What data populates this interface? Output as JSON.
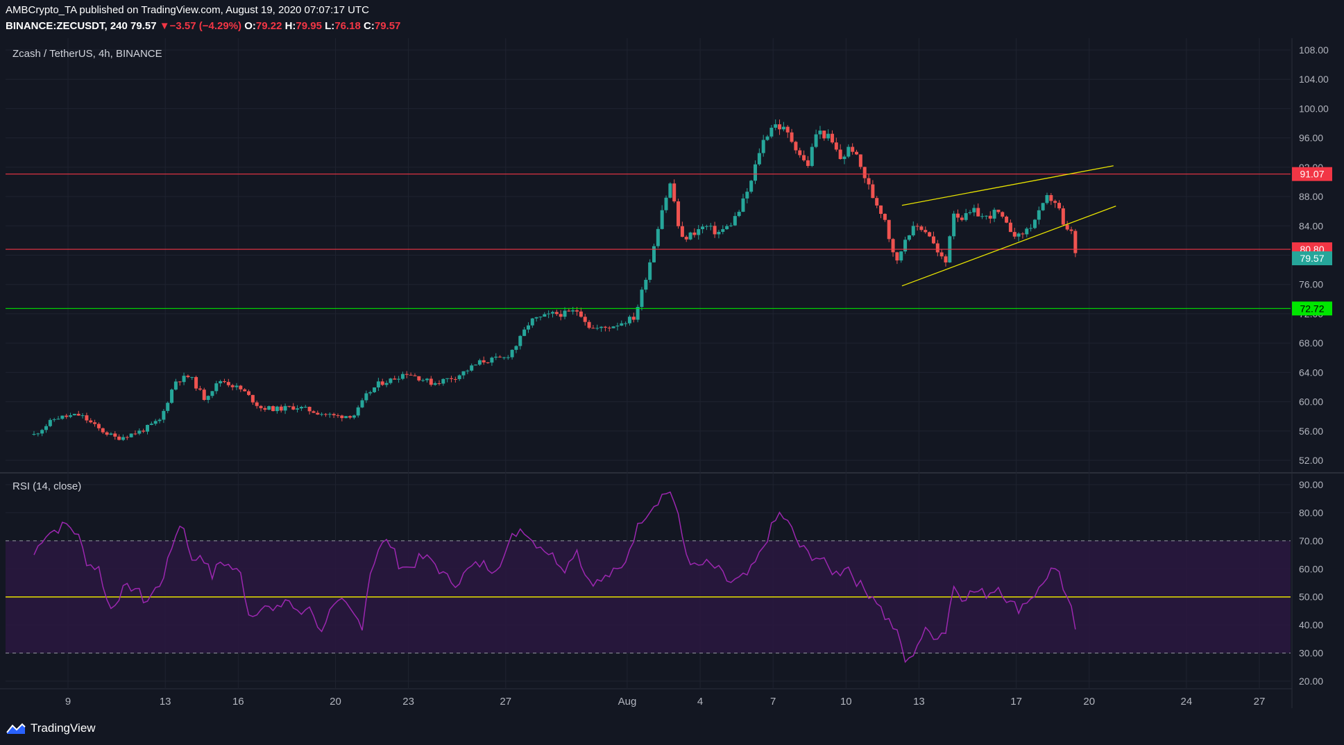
{
  "header": {
    "published": "AMBCrypto_TA published on TradingView.com, August 19, 2020 07:07:17 UTC",
    "symbol": "BINANCE:ZECUSDT, 240",
    "last": "79.57",
    "change_arrow": "▼",
    "change": "−3.57 (−4.29%)",
    "o_label": "O:",
    "o": "79.22",
    "h_label": "H:",
    "h": "79.95",
    "l_label": "L:",
    "l": "76.18",
    "c_label": "C:",
    "c": "79.57"
  },
  "chart_title": "Zcash / TetherUS, 4h, BINANCE",
  "rsi_title": "RSI (14, close)",
  "brand": "TradingView",
  "colors": {
    "background": "#131722",
    "up": "#26a69a",
    "down": "#ef5350",
    "resistance": "#f23645",
    "support": "#00e600",
    "channel": "#e8e300",
    "rsi_line": "#9c27b0",
    "rsi_band": "#2a1840"
  },
  "chart_data": [
    {
      "type": "candlestick",
      "title": "Zcash / TetherUS, 4h, BINANCE",
      "x_ticks": [
        "9",
        "13",
        "16",
        "20",
        "23",
        "27",
        "Aug",
        "4",
        "7",
        "10",
        "13",
        "17",
        "20",
        "24",
        "27"
      ],
      "x_tick_days": [
        9,
        13,
        16,
        20,
        23,
        27,
        32,
        35,
        38,
        41,
        44,
        48,
        51,
        55,
        58
      ],
      "x_unit": "day (July = 1–31, August = 32+)",
      "ylim": [
        50,
        108
      ],
      "y_ticks": [
        "108.00",
        "104.00",
        "100.00",
        "96.00",
        "92.00",
        "88.00",
        "84.00",
        "80.00",
        "76.00",
        "72.00",
        "68.00",
        "64.00",
        "60.00",
        "56.00",
        "52.00"
      ],
      "anchor_closes": [
        [
          7.6,
          55.5
        ],
        [
          8.5,
          57.8
        ],
        [
          9.5,
          58.2
        ],
        [
          10.3,
          56.2
        ],
        [
          11.0,
          55.0
        ],
        [
          12.0,
          56.0
        ],
        [
          12.8,
          57.5
        ],
        [
          13.4,
          62.8
        ],
        [
          14.0,
          63.5
        ],
        [
          14.6,
          60.5
        ],
        [
          15.3,
          63.0
        ],
        [
          16.2,
          61.5
        ],
        [
          16.9,
          59.2
        ],
        [
          17.6,
          59.0
        ],
        [
          18.4,
          59.3
        ],
        [
          19.3,
          58.5
        ],
        [
          20.0,
          58.0
        ],
        [
          20.8,
          58.2
        ],
        [
          21.3,
          61.0
        ],
        [
          21.8,
          62.5
        ],
        [
          22.3,
          63.0
        ],
        [
          22.9,
          64.0
        ],
        [
          24.0,
          62.5
        ],
        [
          25.0,
          63.5
        ],
        [
          26.0,
          65.5
        ],
        [
          27.0,
          66.0
        ],
        [
          27.5,
          68.0
        ],
        [
          28.0,
          71.0
        ],
        [
          29.0,
          72.0
        ],
        [
          29.5,
          72.0
        ],
        [
          30.0,
          72.5
        ],
        [
          30.5,
          70.0
        ],
        [
          31.0,
          70.0
        ],
        [
          31.5,
          70.5
        ],
        [
          32.3,
          71.5
        ],
        [
          32.6,
          75.0
        ],
        [
          33.0,
          80.0
        ],
        [
          33.4,
          86.0
        ],
        [
          33.8,
          90.0
        ],
        [
          34.2,
          82.0
        ],
        [
          34.7,
          83.0
        ],
        [
          35.2,
          84.0
        ],
        [
          35.7,
          83.0
        ],
        [
          36.2,
          84.0
        ],
        [
          36.6,
          86.0
        ],
        [
          37.1,
          90.0
        ],
        [
          37.5,
          95.0
        ],
        [
          38.0,
          98.0
        ],
        [
          38.5,
          97.0
        ],
        [
          38.9,
          95.0
        ],
        [
          39.4,
          92.0
        ],
        [
          39.8,
          97.0
        ],
        [
          40.3,
          96.0
        ],
        [
          40.8,
          93.0
        ],
        [
          41.2,
          95.0
        ],
        [
          41.6,
          92.0
        ],
        [
          42.1,
          88.0
        ],
        [
          42.6,
          85.0
        ],
        [
          42.8,
          82.0
        ],
        [
          43.1,
          79.0
        ],
        [
          43.5,
          83.0
        ],
        [
          44.0,
          84.0
        ],
        [
          44.4,
          83.0
        ],
        [
          44.8,
          80.0
        ],
        [
          45.1,
          79.0
        ],
        [
          45.4,
          86.0
        ],
        [
          45.8,
          85.0
        ],
        [
          46.3,
          86.0
        ],
        [
          46.7,
          85.0
        ],
        [
          47.2,
          86.0
        ],
        [
          47.6,
          84.0
        ],
        [
          48.1,
          82.5
        ],
        [
          48.6,
          84.0
        ],
        [
          49.0,
          86.0
        ],
        [
          49.3,
          88.0
        ],
        [
          49.7,
          87.0
        ],
        [
          50.0,
          83.0
        ],
        [
          50.3,
          83.5
        ],
        [
          50.45,
          79.57
        ]
      ],
      "horizontal_levels": [
        {
          "value": 91.07,
          "label": "91.07",
          "color": "#f23645"
        },
        {
          "value": 80.8,
          "label": "80.80",
          "color": "#f23645"
        },
        {
          "value": 72.72,
          "label": "72.72",
          "color": "#00e600"
        }
      ],
      "last_price": {
        "value": 79.57,
        "label": "79.57"
      },
      "trendlines": [
        {
          "name": "channel-upper",
          "from": [
            43.3,
            86.8
          ],
          "to": [
            52.0,
            92.2
          ]
        },
        {
          "name": "channel-lower",
          "from": [
            43.3,
            75.8
          ],
          "to": [
            52.1,
            86.7
          ]
        }
      ]
    },
    {
      "type": "line",
      "title": "RSI (14, close)",
      "ylim": [
        18,
        92
      ],
      "y_ticks": [
        "90.00",
        "80.00",
        "70.00",
        "60.00",
        "50.00",
        "40.00",
        "30.00",
        "20.00"
      ],
      "band": [
        30,
        70
      ],
      "midline": {
        "value": 50,
        "label": "50.00"
      },
      "anchors": [
        [
          7.6,
          65
        ],
        [
          8.0,
          72
        ],
        [
          8.5,
          74
        ],
        [
          9.0,
          76
        ],
        [
          9.4,
          72
        ],
        [
          9.8,
          62
        ],
        [
          10.3,
          60
        ],
        [
          10.7,
          45
        ],
        [
          11.2,
          52
        ],
        [
          11.7,
          54
        ],
        [
          12.2,
          48
        ],
        [
          12.8,
          55
        ],
        [
          13.1,
          62
        ],
        [
          13.5,
          75
        ],
        [
          13.8,
          75
        ],
        [
          14.1,
          62
        ],
        [
          14.5,
          66
        ],
        [
          14.9,
          57
        ],
        [
          15.3,
          63
        ],
        [
          15.8,
          60
        ],
        [
          16.1,
          58
        ],
        [
          16.5,
          42
        ],
        [
          17.0,
          48
        ],
        [
          17.5,
          44
        ],
        [
          18.0,
          50
        ],
        [
          18.5,
          43
        ],
        [
          19.0,
          48
        ],
        [
          19.3,
          37
        ],
        [
          19.8,
          45
        ],
        [
          20.3,
          48
        ],
        [
          20.8,
          43
        ],
        [
          21.1,
          40
        ],
        [
          21.4,
          58
        ],
        [
          21.8,
          68
        ],
        [
          22.2,
          70
        ],
        [
          22.6,
          62
        ],
        [
          23.0,
          60
        ],
        [
          23.5,
          64
        ],
        [
          24.0,
          63
        ],
        [
          24.5,
          57
        ],
        [
          25.0,
          55
        ],
        [
          25.5,
          60
        ],
        [
          26.0,
          62
        ],
        [
          26.5,
          60
        ],
        [
          27.0,
          65
        ],
        [
          27.3,
          72
        ],
        [
          27.7,
          75
        ],
        [
          28.1,
          70
        ],
        [
          28.5,
          68
        ],
        [
          29.0,
          64
        ],
        [
          29.5,
          60
        ],
        [
          29.9,
          68
        ],
        [
          30.3,
          57
        ],
        [
          30.8,
          55
        ],
        [
          31.3,
          58
        ],
        [
          31.8,
          60
        ],
        [
          32.2,
          70
        ],
        [
          32.6,
          78
        ],
        [
          33.0,
          82
        ],
        [
          33.4,
          86
        ],
        [
          33.8,
          88
        ],
        [
          34.1,
          78
        ],
        [
          34.4,
          66
        ],
        [
          34.8,
          60
        ],
        [
          35.2,
          62
        ],
        [
          35.7,
          60
        ],
        [
          36.2,
          55
        ],
        [
          36.6,
          56
        ],
        [
          37.0,
          58
        ],
        [
          37.4,
          64
        ],
        [
          37.9,
          74
        ],
        [
          38.3,
          80
        ],
        [
          38.7,
          75
        ],
        [
          39.1,
          68
        ],
        [
          39.5,
          65
        ],
        [
          39.9,
          64
        ],
        [
          40.3,
          60
        ],
        [
          40.7,
          58
        ],
        [
          41.0,
          62
        ],
        [
          41.4,
          56
        ],
        [
          41.8,
          52
        ],
        [
          42.2,
          50
        ],
        [
          42.6,
          43
        ],
        [
          42.9,
          40
        ],
        [
          43.2,
          35
        ],
        [
          43.5,
          25
        ],
        [
          43.9,
          33
        ],
        [
          44.3,
          38
        ],
        [
          44.7,
          36
        ],
        [
          45.1,
          38
        ],
        [
          45.4,
          54
        ],
        [
          45.8,
          50
        ],
        [
          46.3,
          52
        ],
        [
          46.8,
          51
        ],
        [
          47.3,
          54
        ],
        [
          47.7,
          48
        ],
        [
          48.1,
          46
        ],
        [
          48.6,
          50
        ],
        [
          49.0,
          53
        ],
        [
          49.4,
          60
        ],
        [
          49.8,
          57
        ],
        [
          50.1,
          48
        ],
        [
          50.3,
          45
        ],
        [
          50.45,
          38
        ]
      ]
    }
  ]
}
